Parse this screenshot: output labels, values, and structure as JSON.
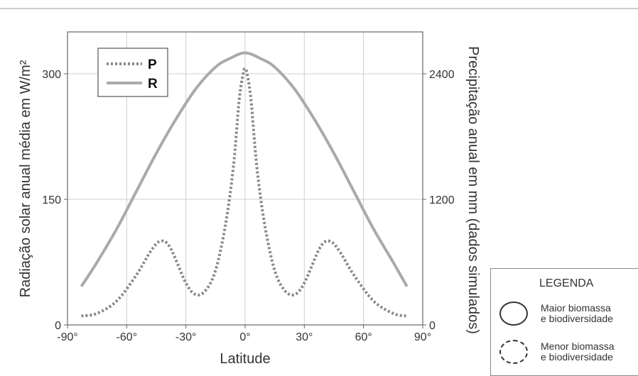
{
  "chart_data": {
    "type": "line",
    "xlabel": "Latitude",
    "ylabel_left": "Radiação solar anual média em W/m²",
    "ylabel_right": "Precipitação anual em mm (dados simulados)",
    "xlim": [
      -90,
      90
    ],
    "ylim_left": [
      0,
      350
    ],
    "ylim_right": [
      0,
      2800
    ],
    "x_ticks": [
      "-90°",
      "-60°",
      "-30°",
      "0°",
      "30°",
      "60°",
      "90°"
    ],
    "y_left_ticks": [
      "0",
      "150",
      "300"
    ],
    "y_right_ticks": [
      "0",
      "1200",
      "2400"
    ],
    "grid": true,
    "legend_position": "top-left",
    "series": [
      {
        "name": "P",
        "axis": "right",
        "style": "dotted",
        "color": "#888888",
        "x": [
          -83,
          -75,
          -65,
          -55,
          -48,
          -43,
          -38,
          -30,
          -25,
          -20,
          -15,
          -10,
          -6,
          -3,
          -1,
          0,
          1,
          3,
          6,
          10,
          15,
          20,
          25,
          30,
          38,
          43,
          48,
          55,
          65,
          75,
          82
        ],
        "y": [
          85,
          110,
          230,
          480,
          700,
          800,
          740,
          400,
          290,
          330,
          520,
          950,
          1500,
          2150,
          2400,
          2450,
          2400,
          2150,
          1500,
          950,
          520,
          330,
          290,
          400,
          740,
          800,
          700,
          480,
          230,
          110,
          85
        ]
      },
      {
        "name": "R",
        "axis": "left",
        "style": "solid",
        "color": "#aaaaaa",
        "x": [
          -83,
          -75,
          -65,
          -55,
          -45,
          -35,
          -25,
          -15,
          -8,
          0,
          8,
          15,
          25,
          35,
          45,
          55,
          65,
          75,
          82
        ],
        "y": [
          46,
          75,
          115,
          160,
          205,
          246,
          282,
          308,
          318,
          325,
          318,
          308,
          282,
          246,
          205,
          160,
          115,
          75,
          46
        ]
      }
    ]
  },
  "legend": {
    "p_label": "P",
    "r_label": "R"
  },
  "legenda": {
    "title": "LEGENDA",
    "item1_line1": "Maior biomassa",
    "item1_line2": "e biodiversidade",
    "item2_line1": "Menor biomassa",
    "item2_line2": "e biodiversidade"
  }
}
